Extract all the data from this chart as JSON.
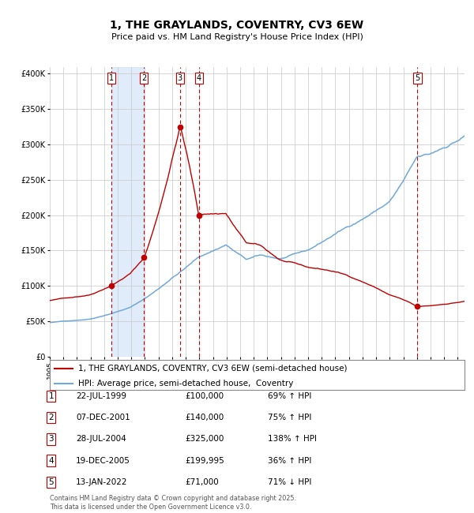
{
  "title": "1, THE GRAYLANDS, COVENTRY, CV3 6EW",
  "subtitle": "Price paid vs. HM Land Registry's House Price Index (HPI)",
  "legend_line1": "1, THE GRAYLANDS, COVENTRY, CV3 6EW (semi-detached house)",
  "legend_line2": "HPI: Average price, semi-detached house,  Coventry",
  "footer": "Contains HM Land Registry data © Crown copyright and database right 2025.\nThis data is licensed under the Open Government Licence v3.0.",
  "transactions": [
    {
      "num": 1,
      "date": "22-JUL-1999",
      "price": 100000,
      "pct": "69%",
      "dir": "↑",
      "year": 1999.55
    },
    {
      "num": 2,
      "date": "07-DEC-2001",
      "price": 140000,
      "pct": "75%",
      "dir": "↑",
      "year": 2001.93
    },
    {
      "num": 3,
      "date": "28-JUL-2004",
      "price": 325000,
      "pct": "138%",
      "dir": "↑",
      "year": 2004.57
    },
    {
      "num": 4,
      "date": "19-DEC-2005",
      "price": 199995,
      "pct": "36%",
      "dir": "↑",
      "year": 2005.96
    },
    {
      "num": 5,
      "date": "13-JAN-2022",
      "price": 71000,
      "pct": "71%",
      "dir": "↓",
      "year": 2022.04
    }
  ],
  "hpi_color": "#6fa8dc",
  "price_color": "#c00000",
  "shade_color": "#cce0f5",
  "dashed_color": "#cc0000",
  "grid_color": "#c8c8c8",
  "bg_color": "#ffffff",
  "ylim": [
    0,
    410000
  ],
  "yticks": [
    0,
    50000,
    100000,
    150000,
    200000,
    250000,
    300000,
    350000,
    400000
  ],
  "ylabel_labels": [
    "£0",
    "£50K",
    "£100K",
    "£150K",
    "£200K",
    "£250K",
    "£300K",
    "£350K",
    "£400K"
  ]
}
